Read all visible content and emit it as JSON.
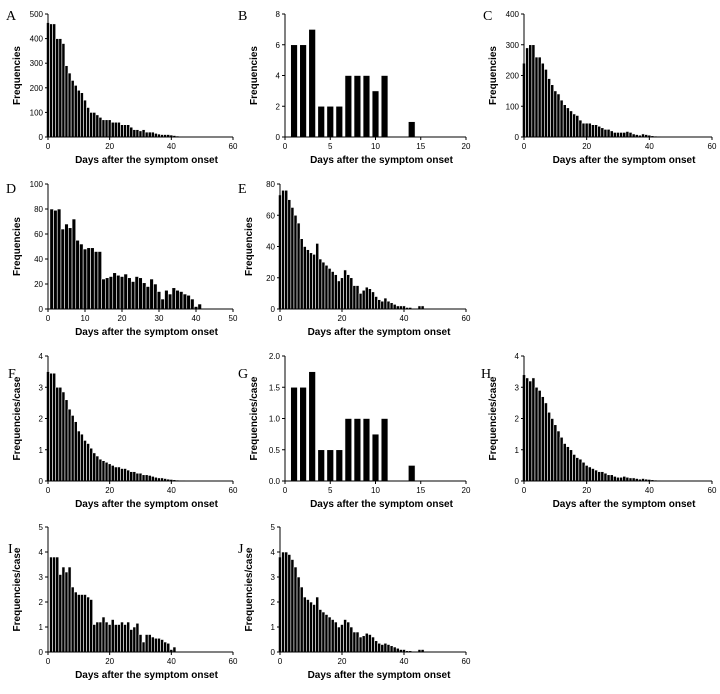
{
  "chart_data": [
    {
      "id": "A",
      "type": "bar",
      "letter": "A",
      "ylabel": "Frequencies",
      "xlabel": "Days after the symptom onset",
      "xlim": [
        0,
        60
      ],
      "xticks": [
        0,
        20,
        40,
        60
      ],
      "ylim": [
        0,
        500
      ],
      "yticks": [
        0,
        100,
        200,
        300,
        400,
        500
      ],
      "bar_width": 1,
      "x": [
        0,
        1,
        2,
        3,
        4,
        5,
        6,
        7,
        8,
        9,
        10,
        11,
        12,
        13,
        14,
        15,
        16,
        17,
        18,
        19,
        20,
        21,
        22,
        23,
        24,
        25,
        26,
        27,
        28,
        29,
        30,
        31,
        32,
        33,
        34,
        35,
        36,
        37,
        38,
        39,
        40,
        41,
        42,
        43,
        44,
        45,
        46
      ],
      "values": [
        465,
        460,
        460,
        400,
        400,
        380,
        290,
        260,
        230,
        210,
        190,
        180,
        150,
        120,
        100,
        100,
        90,
        80,
        70,
        70,
        70,
        60,
        60,
        60,
        50,
        50,
        50,
        40,
        30,
        30,
        25,
        30,
        20,
        20,
        20,
        15,
        12,
        10,
        10,
        10,
        8,
        6,
        4,
        3,
        2,
        2,
        1
      ]
    },
    {
      "id": "B",
      "type": "bar",
      "letter": "B",
      "ylabel": "Frequencies",
      "xlabel": "Days after the symptom onset",
      "xlim": [
        0,
        20
      ],
      "xticks": [
        0,
        5,
        10,
        15,
        20
      ],
      "ylim": [
        0,
        8
      ],
      "yticks": [
        0,
        2,
        4,
        6,
        8
      ],
      "bar_width": 0.75,
      "x": [
        1,
        2,
        3,
        4,
        5,
        6,
        7,
        8,
        9,
        10,
        11,
        14
      ],
      "values": [
        6,
        6,
        7,
        2,
        2,
        2,
        4,
        4,
        4,
        3,
        4,
        1
      ]
    },
    {
      "id": "C",
      "type": "bar",
      "letter": "C",
      "ylabel": "Frequencies",
      "xlabel": "Days after the symptom onset",
      "xlim": [
        0,
        60
      ],
      "xticks": [
        0,
        20,
        40,
        60
      ],
      "ylim": [
        0,
        400
      ],
      "yticks": [
        0,
        100,
        200,
        300,
        400
      ],
      "bar_width": 1,
      "x": [
        0,
        1,
        2,
        3,
        4,
        5,
        6,
        7,
        8,
        9,
        10,
        11,
        12,
        13,
        14,
        15,
        16,
        17,
        18,
        19,
        20,
        21,
        22,
        23,
        24,
        25,
        26,
        27,
        28,
        29,
        30,
        31,
        32,
        33,
        34,
        35,
        36,
        37,
        38,
        39,
        40,
        41,
        42,
        43,
        44
      ],
      "values": [
        240,
        290,
        300,
        300,
        260,
        260,
        240,
        220,
        190,
        170,
        150,
        140,
        120,
        105,
        95,
        85,
        75,
        70,
        55,
        45,
        45,
        45,
        40,
        40,
        35,
        30,
        25,
        25,
        20,
        15,
        15,
        15,
        15,
        18,
        15,
        10,
        8,
        6,
        10,
        8,
        6,
        4,
        3,
        2,
        1
      ]
    },
    {
      "id": "D",
      "type": "bar",
      "letter": "D",
      "ylabel": "Frequencies",
      "xlabel": "Days after the symptom onset",
      "xlim": [
        0,
        50
      ],
      "xticks": [
        0,
        10,
        20,
        30,
        40,
        50
      ],
      "ylim": [
        0,
        100
      ],
      "yticks": [
        0,
        20,
        40,
        60,
        80,
        100
      ],
      "bar_width": 1,
      "x": [
        1,
        2,
        3,
        4,
        5,
        6,
        7,
        8,
        9,
        10,
        11,
        12,
        13,
        14,
        15,
        16,
        17,
        18,
        19,
        20,
        21,
        22,
        23,
        24,
        25,
        26,
        27,
        28,
        29,
        30,
        31,
        32,
        33,
        34,
        35,
        36,
        37,
        38,
        39,
        40,
        41
      ],
      "values": [
        80,
        79,
        80,
        64,
        68,
        65,
        72,
        55,
        52,
        48,
        49,
        49,
        46,
        46,
        24,
        25,
        26,
        29,
        27,
        26,
        28,
        25,
        22,
        26,
        25,
        21,
        18,
        24,
        20,
        14,
        8,
        15,
        12,
        17,
        15,
        14,
        12,
        11,
        8,
        2,
        4
      ]
    },
    {
      "id": "E",
      "type": "bar",
      "letter": "E",
      "ylabel": "Frequencies",
      "xlabel": "Days after the symptom onset",
      "xlim": [
        0,
        60
      ],
      "xticks": [
        0,
        20,
        40,
        60
      ],
      "ylim": [
        0,
        80
      ],
      "yticks": [
        0,
        20,
        40,
        60,
        80
      ],
      "bar_width": 1,
      "x": [
        0,
        1,
        2,
        3,
        4,
        5,
        6,
        7,
        8,
        9,
        10,
        11,
        12,
        13,
        14,
        15,
        16,
        17,
        18,
        19,
        20,
        21,
        22,
        23,
        24,
        25,
        26,
        27,
        28,
        29,
        30,
        31,
        32,
        33,
        34,
        35,
        36,
        37,
        38,
        39,
        40,
        41,
        42,
        43,
        44,
        45,
        46
      ],
      "values": [
        73,
        76,
        76,
        70,
        65,
        60,
        55,
        45,
        40,
        38,
        36,
        35,
        42,
        32,
        30,
        28,
        26,
        24,
        22,
        18,
        20,
        25,
        22,
        20,
        15,
        15,
        10,
        12,
        14,
        13,
        11,
        8,
        6,
        5,
        7,
        5,
        4,
        3,
        2,
        2,
        2,
        1,
        1,
        0,
        0,
        2,
        2
      ]
    },
    {
      "id": "F",
      "type": "bar",
      "letter": "F",
      "ylabel": "Frequencies/case",
      "xlabel": "Days after the symptom onset",
      "xlim": [
        0,
        60
      ],
      "xticks": [
        0,
        20,
        40,
        60
      ],
      "ylim": [
        0,
        4
      ],
      "yticks": [
        0,
        1,
        2,
        3,
        4
      ],
      "bar_width": 1,
      "x": [
        0,
        1,
        2,
        3,
        4,
        5,
        6,
        7,
        8,
        9,
        10,
        11,
        12,
        13,
        14,
        15,
        16,
        17,
        18,
        19,
        20,
        21,
        22,
        23,
        24,
        25,
        26,
        27,
        28,
        29,
        30,
        31,
        32,
        33,
        34,
        35,
        36,
        37,
        38,
        39,
        40,
        41,
        42,
        43,
        44,
        45,
        46
      ],
      "values": [
        3.5,
        3.45,
        3.45,
        3.0,
        3.0,
        2.85,
        2.6,
        2.3,
        2.1,
        1.9,
        1.6,
        1.5,
        1.3,
        1.2,
        1.05,
        0.9,
        0.8,
        0.7,
        0.65,
        0.6,
        0.55,
        0.5,
        0.45,
        0.45,
        0.4,
        0.4,
        0.35,
        0.3,
        0.3,
        0.25,
        0.25,
        0.2,
        0.2,
        0.18,
        0.15,
        0.12,
        0.1,
        0.1,
        0.08,
        0.06,
        0.05,
        0.04,
        0.03,
        0.02,
        0.02,
        0.01,
        0.01
      ]
    },
    {
      "id": "G",
      "type": "bar",
      "letter": "G",
      "ylabel": "Frequencies/case",
      "xlabel": "Days after the symptom onset",
      "xlim": [
        0,
        20
      ],
      "xticks": [
        0,
        5,
        10,
        15,
        20
      ],
      "ylim": [
        0,
        2.0
      ],
      "yticks": [
        0.0,
        0.5,
        1.0,
        1.5,
        2.0
      ],
      "ytick_labels": [
        "0.0",
        "0.5",
        "1.0",
        "1.5",
        "2.0"
      ],
      "bar_width": 0.75,
      "x": [
        1,
        2,
        3,
        4,
        5,
        6,
        7,
        8,
        9,
        10,
        11,
        14
      ],
      "values": [
        1.5,
        1.5,
        1.75,
        0.5,
        0.5,
        0.5,
        1.0,
        1.0,
        1.0,
        0.75,
        1.0,
        0.25
      ]
    },
    {
      "id": "H",
      "type": "bar",
      "letter": "H",
      "ylabel": "Frequencies/case",
      "xlabel": "Days after the symptom onset",
      "xlim": [
        0,
        60
      ],
      "xticks": [
        0,
        20,
        40,
        60
      ],
      "ylim": [
        0,
        4
      ],
      "yticks": [
        0,
        1,
        2,
        3,
        4
      ],
      "bar_width": 1,
      "x": [
        0,
        1,
        2,
        3,
        4,
        5,
        6,
        7,
        8,
        9,
        10,
        11,
        12,
        13,
        14,
        15,
        16,
        17,
        18,
        19,
        20,
        21,
        22,
        23,
        24,
        25,
        26,
        27,
        28,
        29,
        30,
        31,
        32,
        33,
        34,
        35,
        36,
        37,
        38,
        39,
        40,
        41,
        42,
        43,
        44
      ],
      "values": [
        3.4,
        3.3,
        3.2,
        3.3,
        3.0,
        2.9,
        2.7,
        2.5,
        2.2,
        2.0,
        1.8,
        1.6,
        1.4,
        1.2,
        1.1,
        1.0,
        0.85,
        0.75,
        0.7,
        0.6,
        0.5,
        0.45,
        0.4,
        0.35,
        0.3,
        0.3,
        0.25,
        0.2,
        0.2,
        0.15,
        0.12,
        0.12,
        0.15,
        0.12,
        0.1,
        0.1,
        0.08,
        0.06,
        0.08,
        0.06,
        0.05,
        0.04,
        0.03,
        0.02,
        0.01
      ]
    },
    {
      "id": "I",
      "type": "bar",
      "letter": "I",
      "ylabel": "Frequencies/case",
      "xlabel": "Days after the symptom onset",
      "xlim": [
        0,
        60
      ],
      "xticks": [
        0,
        20,
        40,
        60
      ],
      "ylim": [
        0,
        5
      ],
      "yticks": [
        0,
        1,
        2,
        3,
        4,
        5
      ],
      "bar_width": 1,
      "x": [
        1,
        2,
        3,
        4,
        5,
        6,
        7,
        8,
        9,
        10,
        11,
        12,
        13,
        14,
        15,
        16,
        17,
        18,
        19,
        20,
        21,
        22,
        23,
        24,
        25,
        26,
        27,
        28,
        29,
        30,
        31,
        32,
        33,
        34,
        35,
        36,
        37,
        38,
        39,
        40,
        41
      ],
      "values": [
        3.8,
        3.8,
        3.8,
        3.1,
        3.4,
        3.2,
        3.4,
        2.6,
        2.4,
        2.3,
        2.3,
        2.3,
        2.2,
        2.1,
        1.1,
        1.2,
        1.2,
        1.4,
        1.2,
        1.1,
        1.3,
        1.1,
        1.1,
        1.2,
        1.1,
        1.2,
        0.9,
        1.0,
        1.15,
        0.7,
        0.4,
        0.7,
        0.7,
        0.6,
        0.55,
        0.55,
        0.5,
        0.4,
        0.35,
        0.1,
        0.2
      ]
    },
    {
      "id": "J",
      "type": "bar",
      "letter": "J",
      "ylabel": "Frequencies/case",
      "xlabel": "Days after the symptom onset",
      "xlim": [
        0,
        60
      ],
      "xticks": [
        0,
        20,
        40,
        60
      ],
      "ylim": [
        0,
        5
      ],
      "yticks": [
        0,
        1,
        2,
        3,
        4,
        5
      ],
      "bar_width": 1,
      "x": [
        0,
        1,
        2,
        3,
        4,
        5,
        6,
        7,
        8,
        9,
        10,
        11,
        12,
        13,
        14,
        15,
        16,
        17,
        18,
        19,
        20,
        21,
        22,
        23,
        24,
        25,
        26,
        27,
        28,
        29,
        30,
        31,
        32,
        33,
        34,
        35,
        36,
        37,
        38,
        39,
        40,
        41,
        42,
        43,
        44,
        45,
        46
      ],
      "values": [
        3.8,
        4.0,
        4.0,
        3.9,
        3.7,
        3.4,
        3.0,
        2.6,
        2.2,
        2.1,
        2.0,
        1.9,
        2.2,
        1.7,
        1.6,
        1.5,
        1.4,
        1.3,
        1.2,
        1.0,
        1.1,
        1.3,
        1.2,
        1.0,
        0.8,
        0.8,
        0.6,
        0.65,
        0.75,
        0.7,
        0.6,
        0.45,
        0.35,
        0.3,
        0.35,
        0.3,
        0.25,
        0.2,
        0.15,
        0.1,
        0.1,
        0.05,
        0.05,
        0.0,
        0.0,
        0.1,
        0.1
      ]
    }
  ]
}
